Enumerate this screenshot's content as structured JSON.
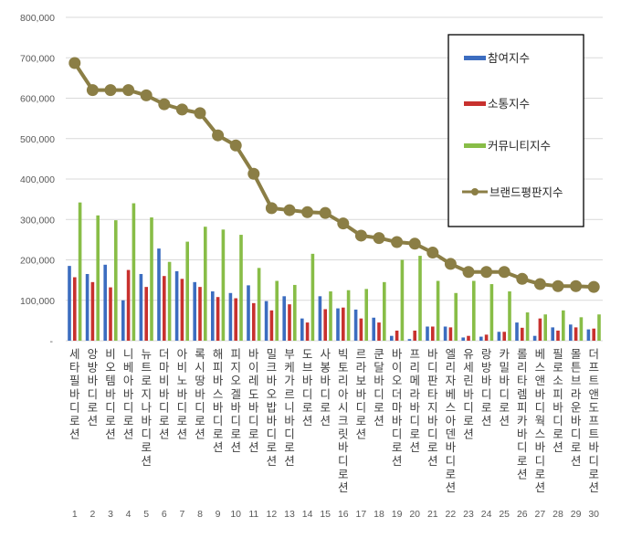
{
  "chart_data": {
    "type": "bar",
    "ylim": [
      0,
      800000
    ],
    "yticks": [
      "800,000",
      "700,000",
      "600,000",
      "500,000",
      "400,000",
      "300,000",
      "200,000",
      "100,000",
      "-"
    ],
    "ranks": [
      "1",
      "2",
      "3",
      "4",
      "5",
      "6",
      "7",
      "8",
      "9",
      "10",
      "11",
      "12",
      "13",
      "14",
      "15",
      "16",
      "17",
      "18",
      "19",
      "20",
      "21",
      "22",
      "23",
      "24",
      "25",
      "26",
      "27",
      "28",
      "29",
      "30"
    ],
    "categories": [
      "세타필 바디로션",
      "앙방 바디로션",
      "비오템 바디로션",
      "니베아 바디로션",
      "뉴트로지나 바디로션",
      "더마비 바디로션",
      "아비노 바디로션",
      "록시땅 바디로션",
      "해피바스 바디로션",
      "피지오겔 바디로션",
      "바이레도 바디로션",
      "밀크바오밥 바디로션",
      "부케가르니 바디로션",
      "도브 바디로션",
      "사봉 바디로션",
      "빅토리아시크릿 바디로션",
      "르라보 바디로션",
      "쿤달 바디로션",
      "바이오더마 바디로션",
      "프리메라 바디로션",
      "바디판타지 바디로션",
      "엘리자베스아덴 바디로션",
      "유세린 바디로션",
      "랑방 바디로션",
      "카밀 바디로션",
      "롤리타렘피카 바디로션",
      "베스앤바디웍스 바디로션",
      "필로소피 바디로션",
      "몰튼브라운 바디로션",
      "더프트앤도프트 바디로션"
    ],
    "series": [
      {
        "name": "참여지수",
        "color": "#3C6DC0",
        "kind": "bar",
        "values": [
          185000,
          165000,
          188000,
          100000,
          165000,
          228000,
          172000,
          145000,
          122000,
          118000,
          137000,
          98000,
          110000,
          55000,
          110000,
          80000,
          77000,
          57000,
          12000,
          4000,
          35000,
          35000,
          8000,
          10000,
          22000,
          45000,
          12000,
          33000,
          40000,
          28000
        ]
      },
      {
        "name": "소통지수",
        "color": "#C8312E",
        "kind": "bar",
        "values": [
          157000,
          145000,
          132000,
          175000,
          133000,
          160000,
          153000,
          133000,
          108000,
          105000,
          93000,
          75000,
          90000,
          45000,
          78000,
          82000,
          55000,
          45000,
          25000,
          25000,
          35000,
          33000,
          12000,
          15000,
          22000,
          32000,
          55000,
          25000,
          33000,
          30000
        ]
      },
      {
        "name": "커뮤니티지수",
        "color": "#88BD47",
        "kind": "bar",
        "values": [
          342000,
          310000,
          298000,
          340000,
          305000,
          195000,
          245000,
          282000,
          275000,
          262000,
          180000,
          148000,
          138000,
          215000,
          122000,
          125000,
          128000,
          145000,
          200000,
          210000,
          148000,
          118000,
          148000,
          140000,
          122000,
          70000,
          65000,
          75000,
          58000,
          65000
        ]
      },
      {
        "name": "브랜드평판지수",
        "color": "#8B7E45",
        "kind": "line",
        "values": [
          687000,
          620000,
          620000,
          620000,
          607000,
          585000,
          572000,
          563000,
          508000,
          483000,
          413000,
          328000,
          323000,
          318000,
          316000,
          290000,
          260000,
          254000,
          244000,
          240000,
          218000,
          190000,
          170000,
          170000,
          170000,
          153000,
          140000,
          135000,
          135000,
          133000
        ]
      }
    ],
    "legend": "top-right",
    "grid": true
  }
}
